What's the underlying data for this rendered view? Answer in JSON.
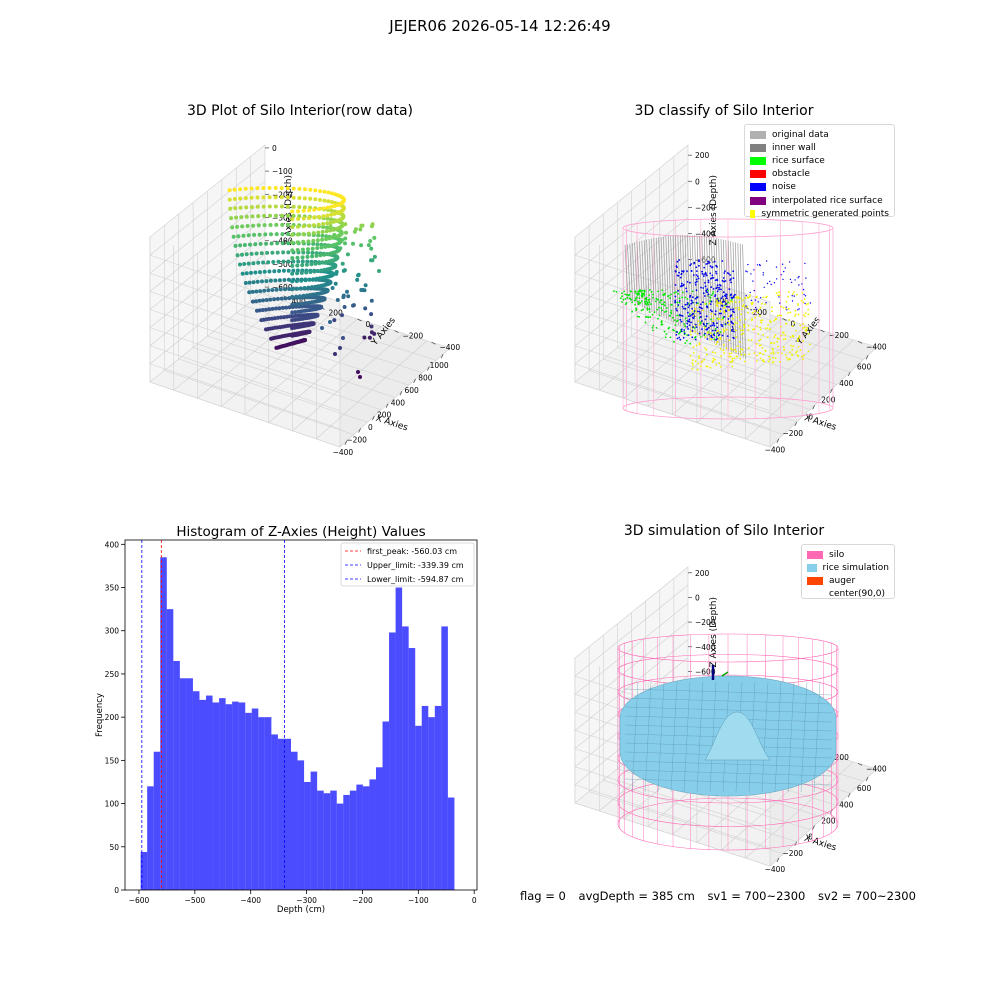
{
  "figure": {
    "suptitle": "JEJER06 2026-05-14 12:26:49"
  },
  "panel1": {
    "title": "3D Plot of Silo Interior(row data)",
    "xlabel": "X Axies",
    "ylabel": "Y Axies",
    "zlabel": "Z Axies (Depth)",
    "xticks": [
      "−400",
      "−200",
      "0",
      "200",
      "400",
      "600",
      "800",
      "1000"
    ],
    "yticks": [
      "−400",
      "−200",
      "0",
      "200",
      "400"
    ],
    "zticks": [
      "0",
      "−100",
      "−200",
      "−300",
      "−400",
      "−500",
      "−600"
    ],
    "colormap": "viridis"
  },
  "panel2": {
    "title": "3D classify of Silo Interior",
    "xlabel": "X Axies",
    "ylabel": "Y Axies",
    "zlabel": "Z Axies (Depth)",
    "xticks": [
      "−400",
      "−200",
      "0",
      "200",
      "400",
      "600"
    ],
    "yticks": [
      "−400",
      "−200",
      "0",
      "200",
      "400"
    ],
    "zticks": [
      "200",
      "0",
      "−200",
      "−400",
      "−600"
    ],
    "legend": [
      {
        "label": "original data",
        "color": "#b0b0b0"
      },
      {
        "label": "inner wall",
        "color": "#808080"
      },
      {
        "label": "rice surface",
        "color": "#00ff00"
      },
      {
        "label": "obstacle",
        "color": "#ff0000"
      },
      {
        "label": "noise",
        "color": "#0000ff"
      },
      {
        "label": "interpolated rice surface",
        "color": "#800080"
      },
      {
        "label": "symmetric generated points",
        "color": "#ffff00"
      }
    ]
  },
  "panel4": {
    "title": "3D simulation of Silo Interior",
    "xlabel": "X Axies",
    "ylabel": "Y Axies",
    "zlabel": "Z Axies (Depth)",
    "xticks": [
      "−400",
      "−200",
      "0",
      "200",
      "400",
      "600"
    ],
    "yticks": [
      "−400",
      "−200",
      "0",
      "200",
      "400"
    ],
    "zticks": [
      "200",
      "0",
      "−200",
      "−400",
      "−600"
    ],
    "legend": [
      {
        "label": "silo",
        "color": "#ff69b4"
      },
      {
        "label": "rice simulation",
        "color": "#87ceeb"
      },
      {
        "label": "auger",
        "color": "#ff4500"
      },
      {
        "label": "center(90,0)",
        "color": ""
      }
    ]
  },
  "status": {
    "flag": "flag = 0",
    "avg_depth": "avgDepth = 385 cm",
    "sv1": "sv1 = 700~2300",
    "sv2": "sv2 = 700~2300"
  },
  "chart_data": [
    {
      "type": "scatter",
      "subtype": "3d",
      "title": "3D Plot of Silo Interior(row data)",
      "xlabel": "X Axies",
      "ylabel": "Y Axies",
      "zlabel": "Z Axies (Depth)",
      "xlim": [
        -500,
        1000
      ],
      "ylim": [
        -500,
        500
      ],
      "zlim": [
        -650,
        50
      ],
      "colormap": "viridis"
    },
    {
      "type": "scatter",
      "subtype": "3d",
      "title": "3D classify of Silo Interior",
      "xlabel": "X Axies",
      "ylabel": "Y Axies",
      "zlabel": "Z Axies (Depth)",
      "xlim": [
        -500,
        650
      ],
      "ylim": [
        -500,
        500
      ],
      "zlim": [
        -650,
        250
      ],
      "series": [
        {
          "name": "original data"
        },
        {
          "name": "inner wall"
        },
        {
          "name": "rice surface"
        },
        {
          "name": "obstacle"
        },
        {
          "name": "noise"
        },
        {
          "name": "interpolated rice surface"
        },
        {
          "name": "symmetric generated points"
        }
      ],
      "legend_position": "upper right"
    },
    {
      "type": "bar",
      "subtype": "histogram",
      "title": "Histogram of Z-Axies (Height) Values",
      "xlabel": "Depth (cm)",
      "ylabel": "Frequency",
      "xlim": [
        -625,
        5
      ],
      "ylim": [
        0,
        405
      ],
      "xticks": [
        -600,
        -500,
        -400,
        -300,
        -200,
        -100,
        0
      ],
      "yticks": [
        0,
        50,
        100,
        150,
        200,
        250,
        300,
        350,
        400
      ],
      "bin_start": -597,
      "bin_width": 11.7,
      "values": [
        44,
        120,
        160,
        385,
        325,
        265,
        245,
        245,
        230,
        220,
        225,
        217,
        222,
        215,
        218,
        217,
        205,
        210,
        200,
        200,
        180,
        175,
        175,
        160,
        150,
        125,
        137,
        115,
        112,
        115,
        100,
        110,
        115,
        122,
        120,
        128,
        142,
        195,
        298,
        350,
        305,
        280,
        190,
        213,
        200,
        213,
        305,
        107
      ],
      "bar_color": "#0000ff",
      "vlines": [
        {
          "label": "first_peak: -560.03 cm",
          "x": -560.03,
          "color": "#ff0000"
        },
        {
          "label": "Upper_limit: -339.39 cm",
          "x": -339.39,
          "color": "#0000ff"
        },
        {
          "label": "Lower_limit: -594.87 cm",
          "x": -594.87,
          "color": "#0000ff"
        }
      ],
      "legend_position": "upper right"
    },
    {
      "type": "area",
      "subtype": "3d surface",
      "title": "3D simulation of Silo Interior",
      "xlabel": "X Axies",
      "ylabel": "Y Axies",
      "zlabel": "Z Axies (Depth)",
      "xlim": [
        -500,
        650
      ],
      "ylim": [
        -500,
        500
      ],
      "zlim": [
        -650,
        350
      ],
      "series": [
        {
          "name": "silo"
        },
        {
          "name": "rice simulation"
        },
        {
          "name": "auger"
        },
        {
          "name": "center(90,0)"
        }
      ],
      "legend_position": "upper right"
    }
  ]
}
